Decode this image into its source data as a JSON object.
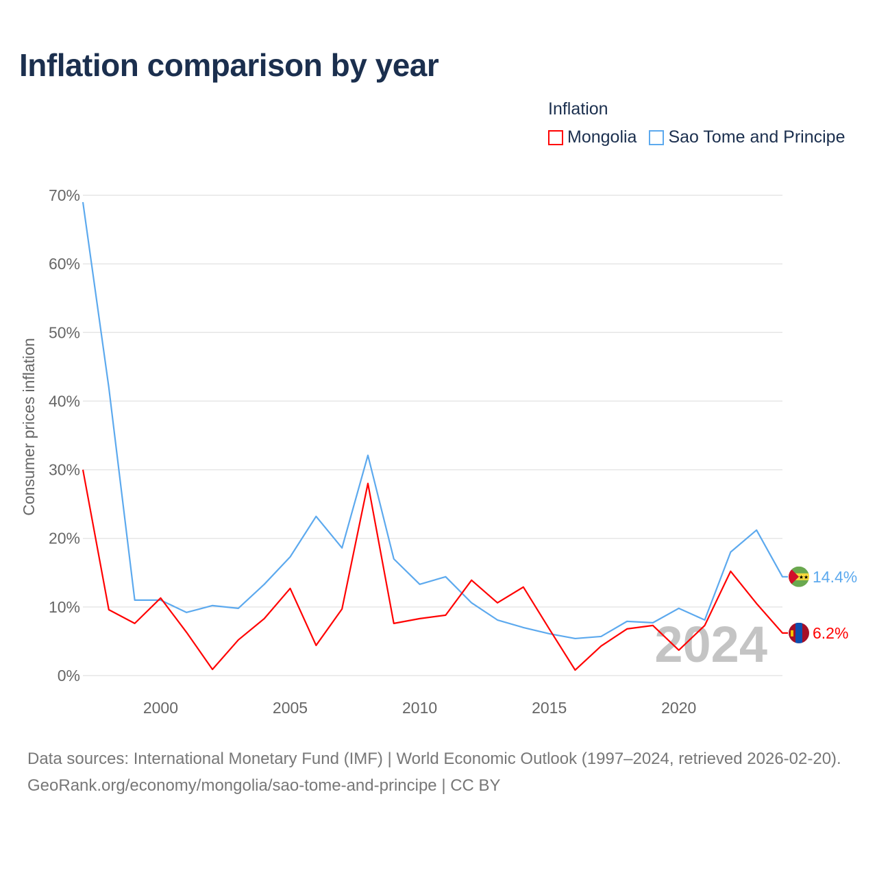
{
  "chart_data": {
    "type": "line",
    "title": "Inflation comparison by year",
    "legend_title": "Inflation",
    "legend_placement": "top-right",
    "ylabel": "Consumer prices inflation",
    "xlabel": "",
    "ylim": [
      0,
      70
    ],
    "xlim": [
      1997,
      2024
    ],
    "yticks": [
      "0%",
      "10%",
      "20%",
      "30%",
      "40%",
      "50%",
      "60%",
      "70%"
    ],
    "xticks": [
      "2000",
      "2005",
      "2010",
      "2015",
      "2020"
    ],
    "grid": true,
    "watermark_year": "2024",
    "x": [
      1997,
      1998,
      1999,
      2000,
      2001,
      2002,
      2003,
      2004,
      2005,
      2006,
      2007,
      2008,
      2009,
      2010,
      2011,
      2012,
      2013,
      2014,
      2015,
      2016,
      2017,
      2018,
      2019,
      2020,
      2021,
      2022,
      2023,
      2024
    ],
    "series": [
      {
        "name": "Mongolia",
        "color": "#ff0000",
        "end_label": "6.2%",
        "values": [
          30.0,
          9.6,
          7.6,
          11.3,
          6.3,
          0.9,
          5.2,
          8.3,
          12.7,
          4.4,
          9.7,
          28.0,
          7.6,
          8.3,
          8.8,
          13.9,
          10.6,
          12.9,
          6.8,
          0.8,
          4.3,
          6.8,
          7.3,
          3.7,
          7.3,
          15.2,
          10.5,
          6.2
        ]
      },
      {
        "name": "Sao Tome and Principe",
        "color": "#5ca9ee",
        "end_label": "14.4%",
        "values": [
          69.0,
          42.0,
          11.0,
          11.0,
          9.2,
          10.2,
          9.8,
          13.3,
          17.3,
          23.2,
          18.6,
          32.1,
          17.0,
          13.3,
          14.4,
          10.6,
          8.1,
          7.0,
          6.1,
          5.4,
          5.7,
          7.9,
          7.7,
          9.8,
          8.1,
          18.0,
          21.2,
          14.4
        ]
      }
    ]
  },
  "footer": {
    "sources": "Data sources: International Monetary Fund (IMF) | World Economic Outlook (1997–2024, retrieved 2026-02-20).",
    "link": "GeoRank.org/economy/mongolia/sao-tome-and-principe | CC BY"
  }
}
